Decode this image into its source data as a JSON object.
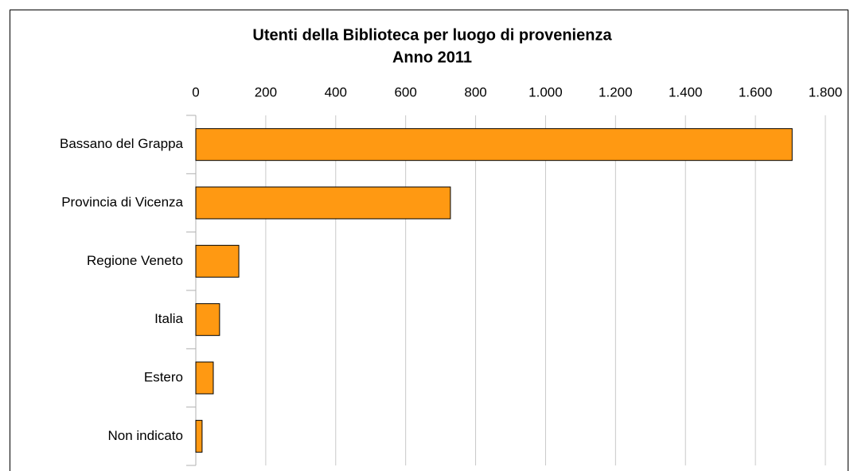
{
  "chart_data": {
    "type": "bar",
    "orientation": "horizontal",
    "title": "Utenti della Biblioteca per luogo di provenienza",
    "subtitle": "Anno 2011",
    "categories": [
      "Bassano del Grappa",
      "Provincia di Vicenza",
      "Regione Veneto",
      "Italia",
      "Estero",
      "Non indicato"
    ],
    "values": [
      1705,
      728,
      123,
      68,
      50,
      18
    ],
    "color": "#ff9912",
    "xlim": [
      0,
      1800
    ],
    "xticks": [
      0,
      200,
      400,
      600,
      800,
      {
        "value": 1000,
        "label": "1.000"
      },
      {
        "value": 1200,
        "label": "1.200"
      },
      {
        "value": 1400,
        "label": "1.400"
      },
      {
        "value": 1600,
        "label": "1.600"
      },
      {
        "value": 1800,
        "label": "1.800"
      }
    ],
    "grid": true
  }
}
